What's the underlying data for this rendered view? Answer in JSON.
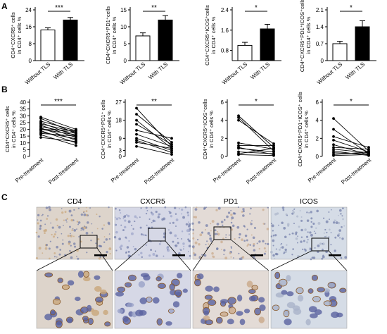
{
  "panel_labels": {
    "A": "A",
    "B": "B",
    "C": "C"
  },
  "chart_data": [
    {
      "type": "bar",
      "ylabel": "CD4⁺CXCR5⁺ cells in CD4⁺ cells %",
      "categories": [
        "Without TLS",
        "With TLS"
      ],
      "values": [
        14.5,
        19.2
      ],
      "errors": [
        1.0,
        1.2
      ],
      "ylim": [
        0,
        24
      ],
      "yticks": [
        "0",
        "8",
        "16",
        "24"
      ],
      "significance": "***",
      "colors": [
        "#ffffff",
        "#000000"
      ]
    },
    {
      "type": "bar",
      "ylabel": "CD4⁺CXCR5⁺PD1⁺cells in CD4⁺ cells %",
      "categories": [
        "Without TLS",
        "With TLS"
      ],
      "values": [
        7.3,
        12.0
      ],
      "errors": [
        0.9,
        1.3
      ],
      "ylim": [
        0,
        15
      ],
      "yticks": [
        "0",
        "5",
        "10",
        "15"
      ],
      "significance": "**",
      "colors": [
        "#ffffff",
        "#000000"
      ]
    },
    {
      "type": "bar",
      "ylabel": "CD4⁺CXCR5⁺ICOS⁺cells in CD4⁺ cells %",
      "categories": [
        "Without TLS",
        "With TLS"
      ],
      "values": [
        1.0,
        1.65
      ],
      "errors": [
        0.12,
        0.18
      ],
      "ylim": [
        0.4,
        2.4
      ],
      "yticks": [
        "0.8",
        "1.6",
        "2.4"
      ],
      "significance": "*",
      "colors": [
        "#ffffff",
        "#000000"
      ]
    },
    {
      "type": "bar",
      "ylabel": "CD4⁺CXCR5⁺PD1⁺ICOS⁺cells in CD4⁺ cells %",
      "categories": [
        "Without TLS",
        "With TLS"
      ],
      "values": [
        0.7,
        1.4
      ],
      "errors": [
        0.1,
        0.25
      ],
      "ylim": [
        0,
        2.1
      ],
      "yticks": [
        "0",
        "0.7",
        "1.4",
        "2.1"
      ],
      "significance": "*",
      "colors": [
        "#ffffff",
        "#000000"
      ]
    },
    {
      "type": "line",
      "ylabel": "CD4⁺CXCR5⁺ cells in CD4⁺ cells %",
      "x": [
        "Pre-treatment",
        "Post-treatment"
      ],
      "ylim": [
        0,
        40
      ],
      "yticks": [
        "0",
        "5",
        "10",
        "15",
        "20",
        "25",
        "30",
        "35",
        "40"
      ],
      "significance": "***",
      "pairs": [
        [
          29,
          20
        ],
        [
          28,
          17
        ],
        [
          26,
          19
        ],
        [
          25,
          15
        ],
        [
          24,
          18
        ],
        [
          23,
          14
        ],
        [
          22,
          17
        ],
        [
          21,
          12
        ],
        [
          20,
          16
        ],
        [
          20,
          19
        ],
        [
          19,
          10
        ],
        [
          18,
          13
        ],
        [
          17,
          15
        ],
        [
          16,
          8
        ],
        [
          14,
          11
        ]
      ]
    },
    {
      "type": "line",
      "ylabel": "CD4⁺CXCR5⁺PD1⁺ cells in CD4⁺ cells %",
      "x": [
        "Pre-treatment",
        "Post-treatment"
      ],
      "ylim": [
        0,
        27
      ],
      "yticks": [
        "0",
        "3",
        "9",
        "18",
        "27"
      ],
      "significance": "**",
      "pairs": [
        [
          24,
          5
        ],
        [
          21,
          7
        ],
        [
          18,
          4
        ],
        [
          16,
          6
        ],
        [
          13,
          9
        ],
        [
          11,
          5
        ],
        [
          9,
          3
        ],
        [
          8,
          2
        ],
        [
          7,
          4
        ],
        [
          5,
          1
        ]
      ]
    },
    {
      "type": "line",
      "ylabel": "CD4⁺CXCR5⁺ICOS⁺cells in CD4⁺ cells %",
      "x": [
        "Pre-treatment",
        "Post-treatment"
      ],
      "ylim": [
        0,
        6
      ],
      "yticks": [
        "0",
        "2",
        "4",
        "6"
      ],
      "significance": "*",
      "pairs": [
        [
          4.5,
          1.0
        ],
        [
          4.3,
          0.6
        ],
        [
          4.0,
          1.4
        ],
        [
          1.5,
          0.8
        ],
        [
          1.2,
          1.2
        ],
        [
          1.0,
          0.2
        ],
        [
          0.9,
          0.5
        ],
        [
          0.5,
          0.3
        ],
        [
          0.3,
          0.9
        ],
        [
          0.2,
          0.1
        ]
      ]
    },
    {
      "type": "line",
      "ylabel": "CD4⁺CXCR5⁺PD1⁺ICOS⁺ cells in CD4⁺ cells %",
      "x": [
        "Pre-treatment",
        "Post-treatment"
      ],
      "ylim": [
        0,
        6
      ],
      "yticks": [
        "0",
        "2",
        "4",
        "6"
      ],
      "significance": "*",
      "pairs": [
        [
          4.2,
          0.6
        ],
        [
          3.0,
          0.3
        ],
        [
          2.2,
          1.0
        ],
        [
          1.8,
          0.5
        ],
        [
          1.3,
          0.2
        ],
        [
          1.0,
          0.8
        ],
        [
          0.8,
          0.4
        ],
        [
          0.6,
          0.1
        ],
        [
          0.4,
          0.3
        ],
        [
          0.2,
          0.5
        ],
        [
          0.1,
          0.2
        ]
      ]
    }
  ],
  "micrographs": {
    "titles": [
      "CD4",
      "CXCR5",
      "PD1",
      "ICOS"
    ],
    "stain_colors": [
      "#c9a67a",
      "#9aa3c8",
      "#c9a98a",
      "#a9b3c9"
    ],
    "background_colors": [
      "#ddd4cb",
      "#d6d8e6",
      "#e3dbd6",
      "#d5dce6"
    ]
  }
}
